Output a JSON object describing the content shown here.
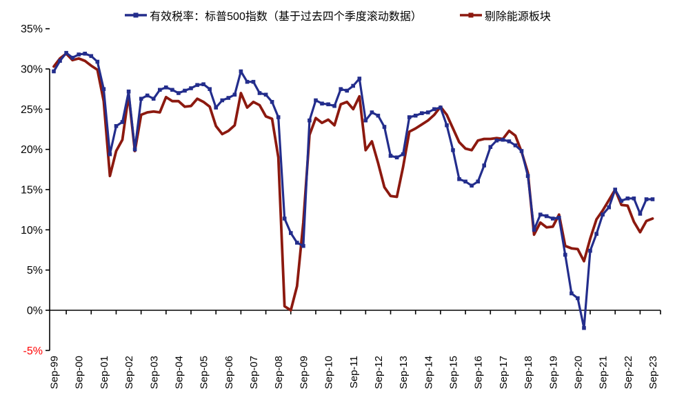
{
  "chart_data": {
    "type": "line",
    "title": "",
    "x_tick_labels": [
      "Sep-99",
      "Sep-00",
      "Sep-01",
      "Sep-02",
      "Sep-03",
      "Sep-04",
      "Sep-05",
      "Sep-06",
      "Sep-07",
      "Sep-08",
      "Sep-09",
      "Sep-10",
      "Sep-11",
      "Sep-12",
      "Sep-13",
      "Sep-14",
      "Sep-15",
      "Sep-16",
      "Sep-17",
      "Sep-18",
      "Sep-19",
      "Sep-20",
      "Sep-21",
      "Sep-22",
      "Sep-23"
    ],
    "x_frequency": "quarterly",
    "y_ticks": [
      35,
      30,
      25,
      20,
      15,
      10,
      5,
      0,
      -5
    ],
    "y_tick_suffix": "%",
    "ylim": [
      -5,
      35
    ],
    "grid": "off",
    "legend_position": "top",
    "axis_color": "#000000",
    "negative_tick_color": "#ff0000",
    "series": [
      {
        "name": "有效税率：标普500指数（基于过去四个季度滚动数据）",
        "color": "#232D8C",
        "marker": "square",
        "values": [
          29.7,
          31.0,
          32.0,
          31.4,
          31.8,
          31.9,
          31.6,
          30.9,
          27.5,
          19.4,
          22.9,
          23.4,
          27.2,
          20.0,
          26.3,
          26.7,
          26.3,
          27.4,
          27.7,
          27.4,
          27.0,
          27.3,
          27.6,
          28.0,
          28.1,
          27.5,
          25.2,
          26.1,
          26.4,
          26.8,
          29.7,
          28.4,
          28.4,
          27.0,
          26.8,
          25.9,
          24.0,
          11.4,
          9.6,
          8.4,
          8.0,
          23.6,
          26.1,
          25.7,
          25.6,
          25.4,
          27.5,
          27.3,
          27.9,
          28.8,
          23.6,
          24.6,
          24.2,
          22.8,
          19.2,
          19.0,
          19.4,
          24.0,
          24.2,
          24.5,
          24.6,
          25.0,
          25.2,
          23.0,
          19.9,
          16.3,
          16.0,
          15.5,
          16.0,
          18.0,
          20.3,
          21.1,
          21.2,
          21.0,
          20.5,
          19.8,
          16.7,
          10.0,
          11.9,
          11.7,
          11.4,
          11.5,
          6.9,
          2.1,
          1.5,
          -2.2,
          7.4,
          9.5,
          11.9,
          12.8,
          15.0,
          13.6,
          13.9,
          13.9,
          12.0,
          13.8,
          13.8
        ]
      },
      {
        "name": "剔除能源板块",
        "color": "#8C190F",
        "marker": "none",
        "values": [
          30.3,
          31.3,
          31.9,
          31.1,
          31.3,
          31.0,
          30.4,
          29.9,
          26.0,
          16.7,
          19.8,
          21.2,
          26.8,
          19.8,
          24.3,
          24.6,
          24.7,
          24.6,
          26.5,
          26.0,
          26.0,
          25.3,
          25.4,
          26.3,
          25.9,
          25.3,
          22.9,
          21.9,
          22.3,
          23.0,
          27.0,
          25.2,
          25.9,
          25.5,
          24.1,
          23.8,
          19.0,
          0.5,
          0.0,
          3.0,
          10.9,
          21.8,
          23.9,
          23.3,
          23.7,
          23.0,
          25.6,
          25.9,
          25.0,
          26.6,
          19.9,
          21.0,
          18.3,
          15.3,
          14.2,
          14.1,
          17.8,
          22.2,
          22.6,
          23.1,
          23.6,
          24.3,
          25.3,
          24.3,
          22.6,
          20.9,
          20.1,
          19.9,
          21.1,
          21.3,
          21.3,
          21.4,
          21.3,
          22.3,
          21.7,
          19.7,
          17.1,
          9.4,
          10.9,
          10.3,
          10.4,
          11.9,
          8.0,
          7.7,
          7.6,
          6.1,
          8.9,
          11.3,
          12.4,
          13.7,
          15.0,
          13.1,
          13.0,
          11.0,
          9.7,
          11.1,
          11.4
        ]
      }
    ]
  }
}
